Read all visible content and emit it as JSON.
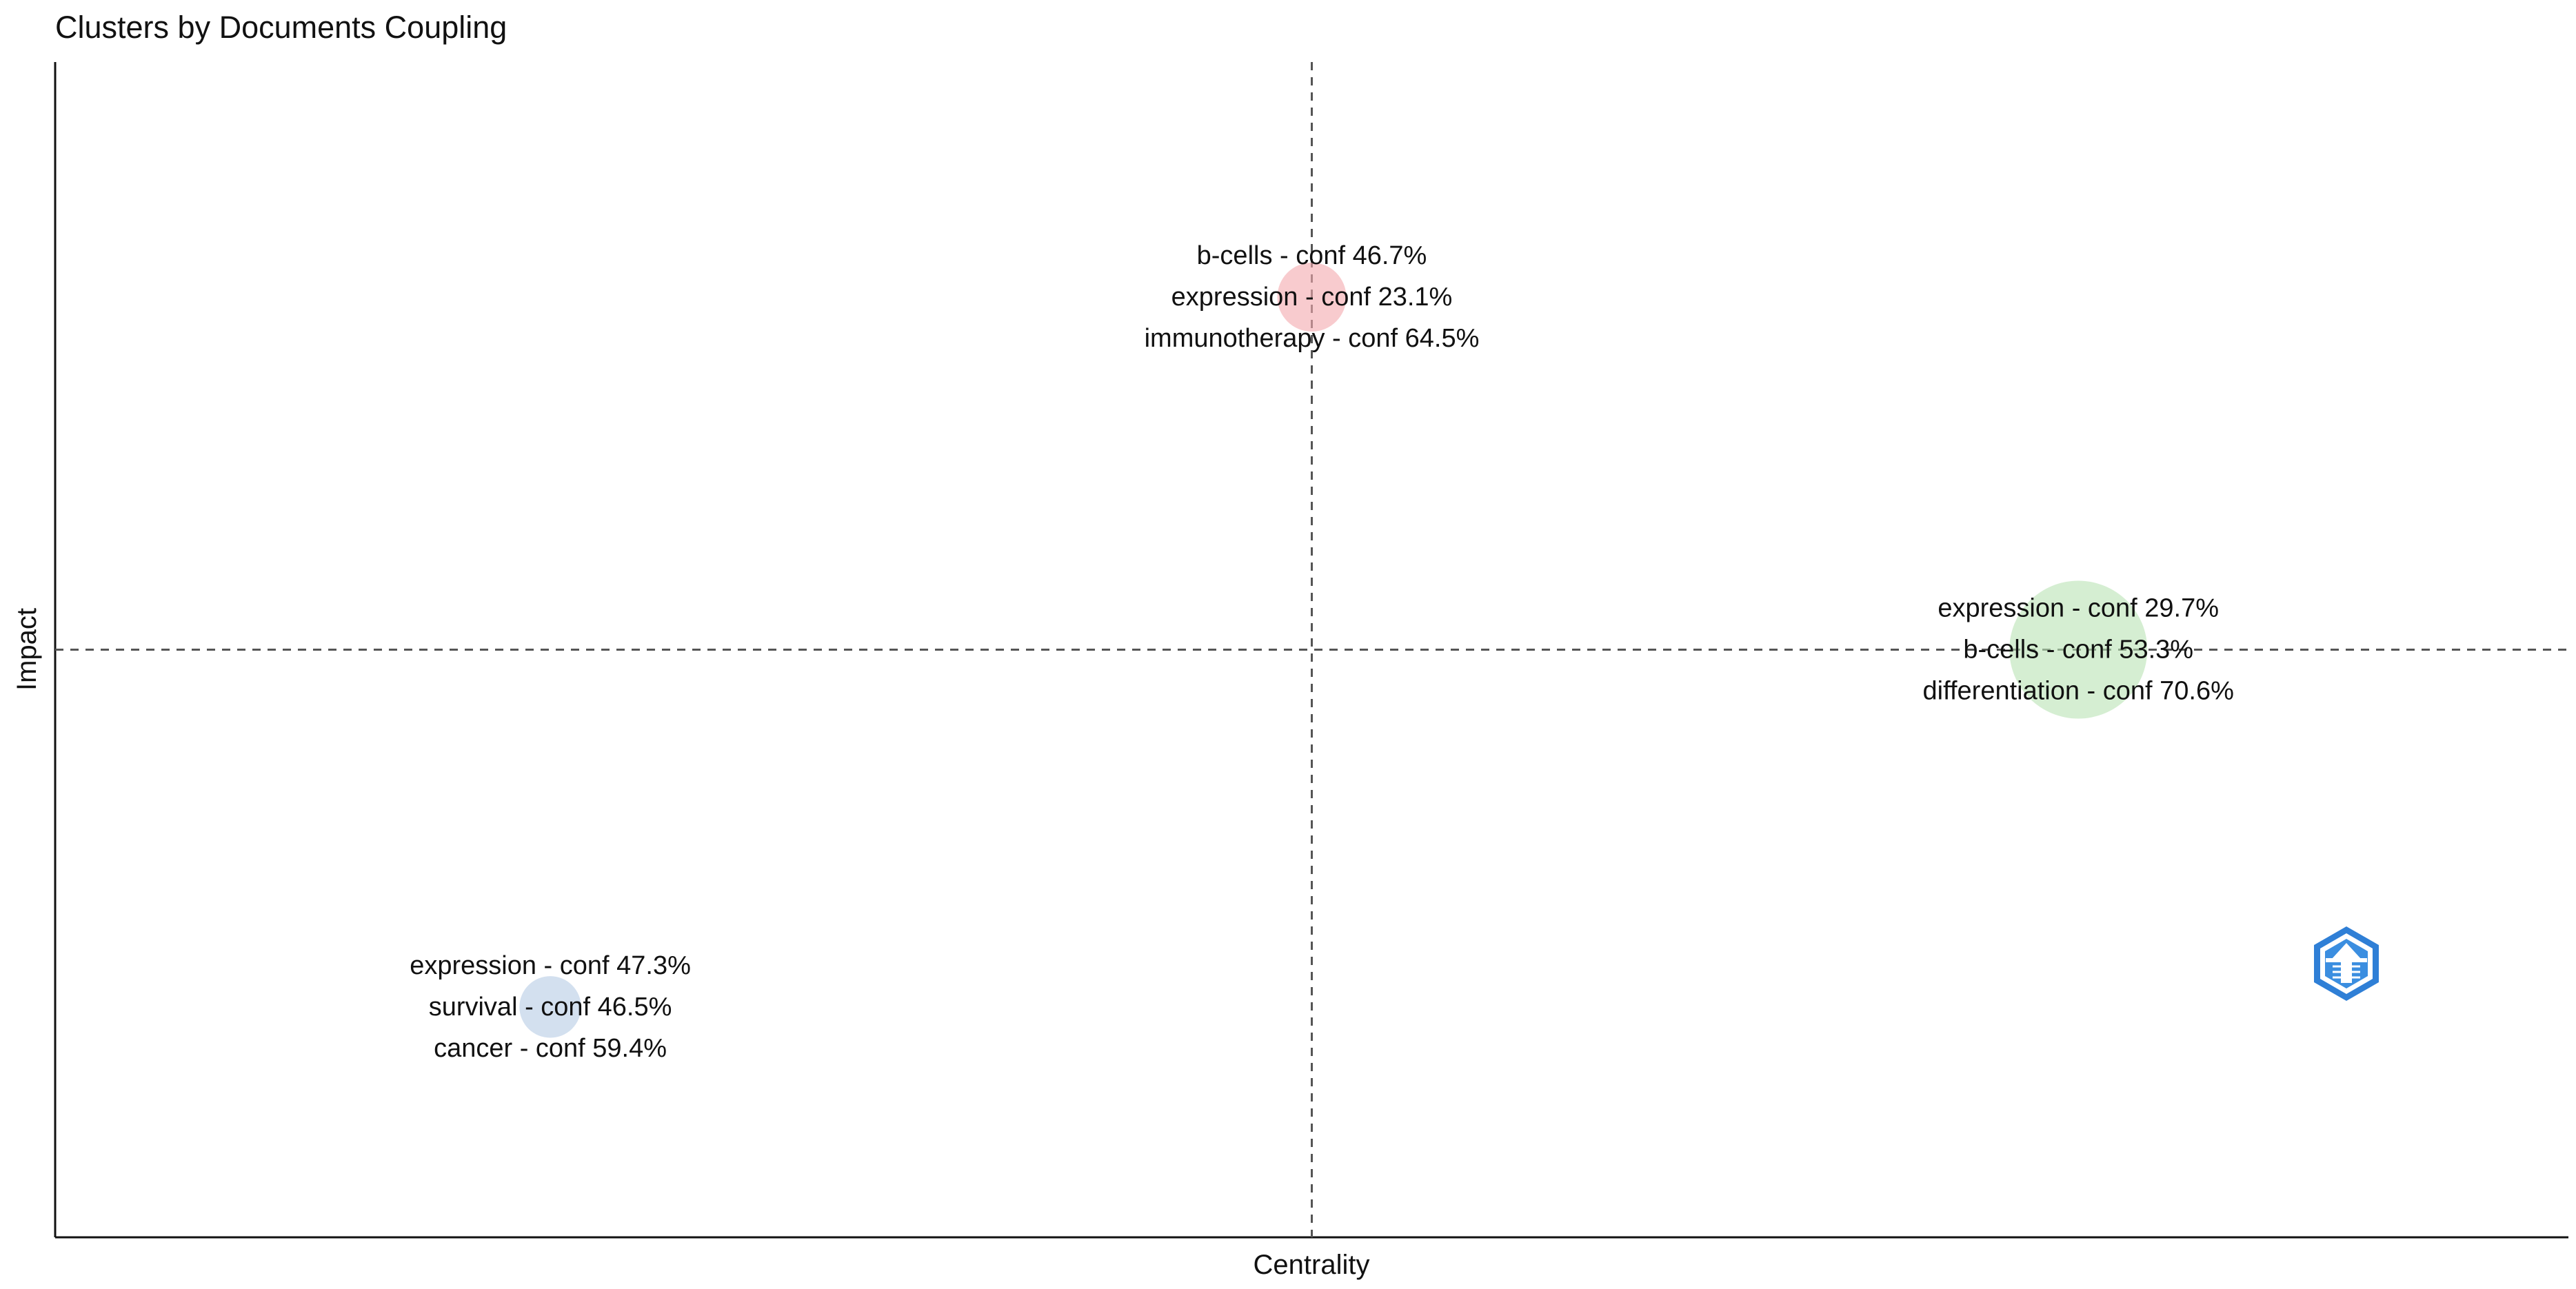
{
  "chart_data": {
    "type": "scatter",
    "title": "Clusters by Documents Coupling",
    "xlabel": "Centrality",
    "ylabel": "Impact",
    "xlim": [
      0,
      1
    ],
    "ylim": [
      0,
      1
    ],
    "ref_x": 0.5,
    "ref_y": 0.5,
    "grid": false,
    "legend": "none",
    "clusters": [
      {
        "name": "cluster-red",
        "x": 0.5,
        "y": 0.8,
        "size": 0.25,
        "color": "#f4a9ad",
        "labels": [
          "b-cells - conf 46.7%",
          "expression - conf 23.1%",
          "immunotherapy - conf 64.5%"
        ]
      },
      {
        "name": "cluster-green",
        "x": 0.805,
        "y": 0.5,
        "size": 1.0,
        "color": "#b9e2b4",
        "labels": [
          "expression - conf 29.7%",
          "b-cells - conf 53.3%",
          "differentiation - conf 70.6%"
        ]
      },
      {
        "name": "cluster-blue",
        "x": 0.197,
        "y": 0.196,
        "size": 0.2,
        "color": "#b6cbe4",
        "labels": [
          "expression - conf 47.3%",
          "survival - conf 46.5%",
          "cancer - conf 59.4%"
        ]
      }
    ],
    "logo": {
      "icon": "bibliometrix-logo-icon",
      "color": "#2f7fd6"
    }
  }
}
